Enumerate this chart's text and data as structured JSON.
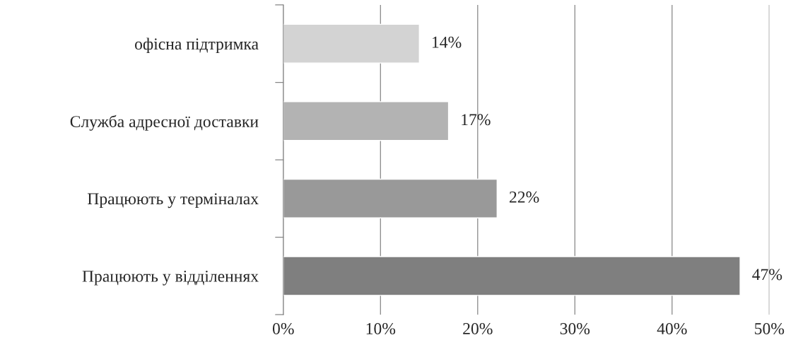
{
  "chart_data": {
    "type": "bar",
    "orientation": "horizontal",
    "categories": [
      "офісна підтримка",
      "Служба адресної доставки",
      "Працюють у терміналах",
      "Працюють у відділеннях"
    ],
    "values": [
      14,
      17,
      22,
      47
    ],
    "colors": [
      "#d3d3d3",
      "#b3b3b3",
      "#999999",
      "#7f7f7f"
    ],
    "value_labels": [
      "14%",
      "17%",
      "22%",
      "47%"
    ],
    "xlim": [
      0,
      50
    ],
    "xticks": [
      {
        "value": 0,
        "label": "0%"
      },
      {
        "value": 10,
        "label": "10%"
      },
      {
        "value": 20,
        "label": "20%"
      },
      {
        "value": 30,
        "label": "30%"
      },
      {
        "value": 40,
        "label": "40%"
      },
      {
        "value": 50,
        "label": "50%"
      }
    ],
    "grid": "x",
    "legend": false
  }
}
